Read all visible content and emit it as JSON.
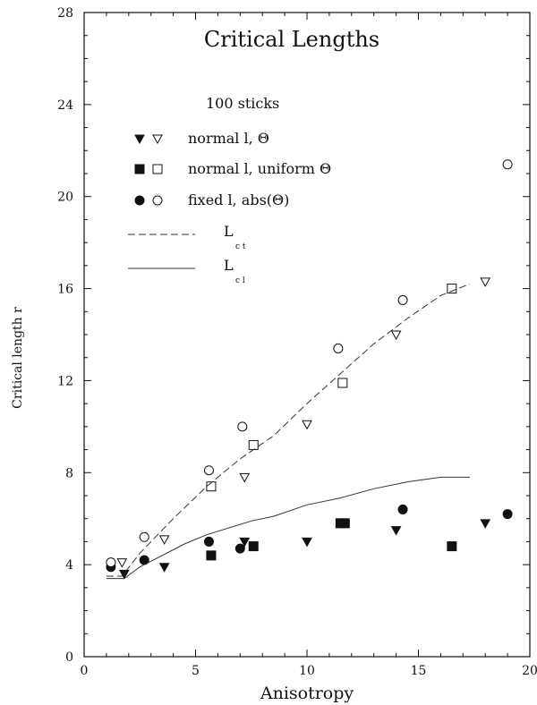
{
  "chart_data": {
    "type": "scatter",
    "title": "Critical Lengths",
    "xlabel": "Anisotropy",
    "ylabel": "Critical length r",
    "xlim": [
      0,
      20
    ],
    "ylim": [
      0,
      28
    ],
    "xticks": [
      "0",
      "5",
      "10",
      "15",
      "20"
    ],
    "yticks": [
      "0",
      "4",
      "8",
      "12",
      "16",
      "20",
      "24",
      "28"
    ],
    "grid": false,
    "legend": {
      "placement": "top-left",
      "heading": "100 sticks",
      "entries": [
        {
          "label": "normal l, Θ",
          "markers": [
            "filled-down-triangle",
            "open-down-triangle"
          ]
        },
        {
          "label": "normal l, uniform Θ",
          "markers": [
            "filled-square",
            "open-square"
          ]
        },
        {
          "label": "fixed l, abs(Θ)",
          "markers": [
            "filled-circle",
            "open-circle"
          ]
        },
        {
          "label": "L",
          "subscript": "c t",
          "line": "dashed"
        },
        {
          "label": "L",
          "subscript": "c l",
          "line": "solid"
        }
      ]
    },
    "series": [
      {
        "marker": "filled-down-triangle",
        "points": [
          [
            1.8,
            3.6
          ],
          [
            3.6,
            3.9
          ],
          [
            7.2,
            5.0
          ],
          [
            10.0,
            5.0
          ],
          [
            14.0,
            5.5
          ],
          [
            18.0,
            5.8
          ]
        ]
      },
      {
        "marker": "open-down-triangle",
        "points": [
          [
            1.7,
            4.1
          ],
          [
            3.6,
            5.1
          ],
          [
            7.2,
            7.8
          ],
          [
            10.0,
            10.1
          ],
          [
            14.0,
            14.0
          ],
          [
            18.0,
            16.3
          ]
        ]
      },
      {
        "marker": "filled-square",
        "points": [
          [
            5.7,
            4.4
          ],
          [
            7.6,
            4.8
          ],
          [
            11.5,
            5.8
          ],
          [
            11.7,
            5.8
          ],
          [
            16.5,
            4.8
          ]
        ]
      },
      {
        "marker": "open-square",
        "points": [
          [
            5.7,
            7.4
          ],
          [
            7.6,
            9.2
          ],
          [
            11.6,
            11.9
          ],
          [
            16.5,
            16.0
          ]
        ]
      },
      {
        "marker": "filled-circle",
        "points": [
          [
            1.2,
            3.9
          ],
          [
            2.7,
            4.2
          ],
          [
            5.6,
            5.0
          ],
          [
            7.0,
            4.7
          ],
          [
            14.3,
            6.4
          ],
          [
            19.0,
            6.2
          ]
        ]
      },
      {
        "marker": "open-circle",
        "points": [
          [
            1.2,
            4.1
          ],
          [
            2.7,
            5.2
          ],
          [
            5.6,
            8.1
          ],
          [
            7.1,
            10.0
          ],
          [
            11.4,
            13.4
          ],
          [
            14.3,
            15.5
          ],
          [
            19.0,
            21.4
          ]
        ]
      },
      {
        "line": "dashed",
        "points": [
          [
            1.0,
            3.5
          ],
          [
            1.7,
            3.5
          ],
          [
            2.5,
            4.5
          ],
          [
            4.0,
            6.0
          ],
          [
            5.5,
            7.4
          ],
          [
            7.0,
            8.6
          ],
          [
            8.5,
            9.6
          ],
          [
            10.0,
            11.0
          ],
          [
            11.5,
            12.3
          ],
          [
            13.0,
            13.6
          ],
          [
            14.5,
            14.7
          ],
          [
            16.0,
            15.7
          ],
          [
            17.3,
            16.2
          ]
        ]
      },
      {
        "line": "solid",
        "points": [
          [
            1.0,
            3.4
          ],
          [
            1.8,
            3.4
          ],
          [
            2.5,
            3.9
          ],
          [
            3.5,
            4.4
          ],
          [
            4.5,
            4.9
          ],
          [
            5.5,
            5.3
          ],
          [
            6.5,
            5.6
          ],
          [
            7.5,
            5.9
          ],
          [
            8.5,
            6.1
          ],
          [
            10.0,
            6.6
          ],
          [
            11.5,
            6.9
          ],
          [
            13.0,
            7.3
          ],
          [
            14.5,
            7.6
          ],
          [
            16.0,
            7.8
          ],
          [
            17.3,
            7.8
          ]
        ]
      }
    ]
  }
}
